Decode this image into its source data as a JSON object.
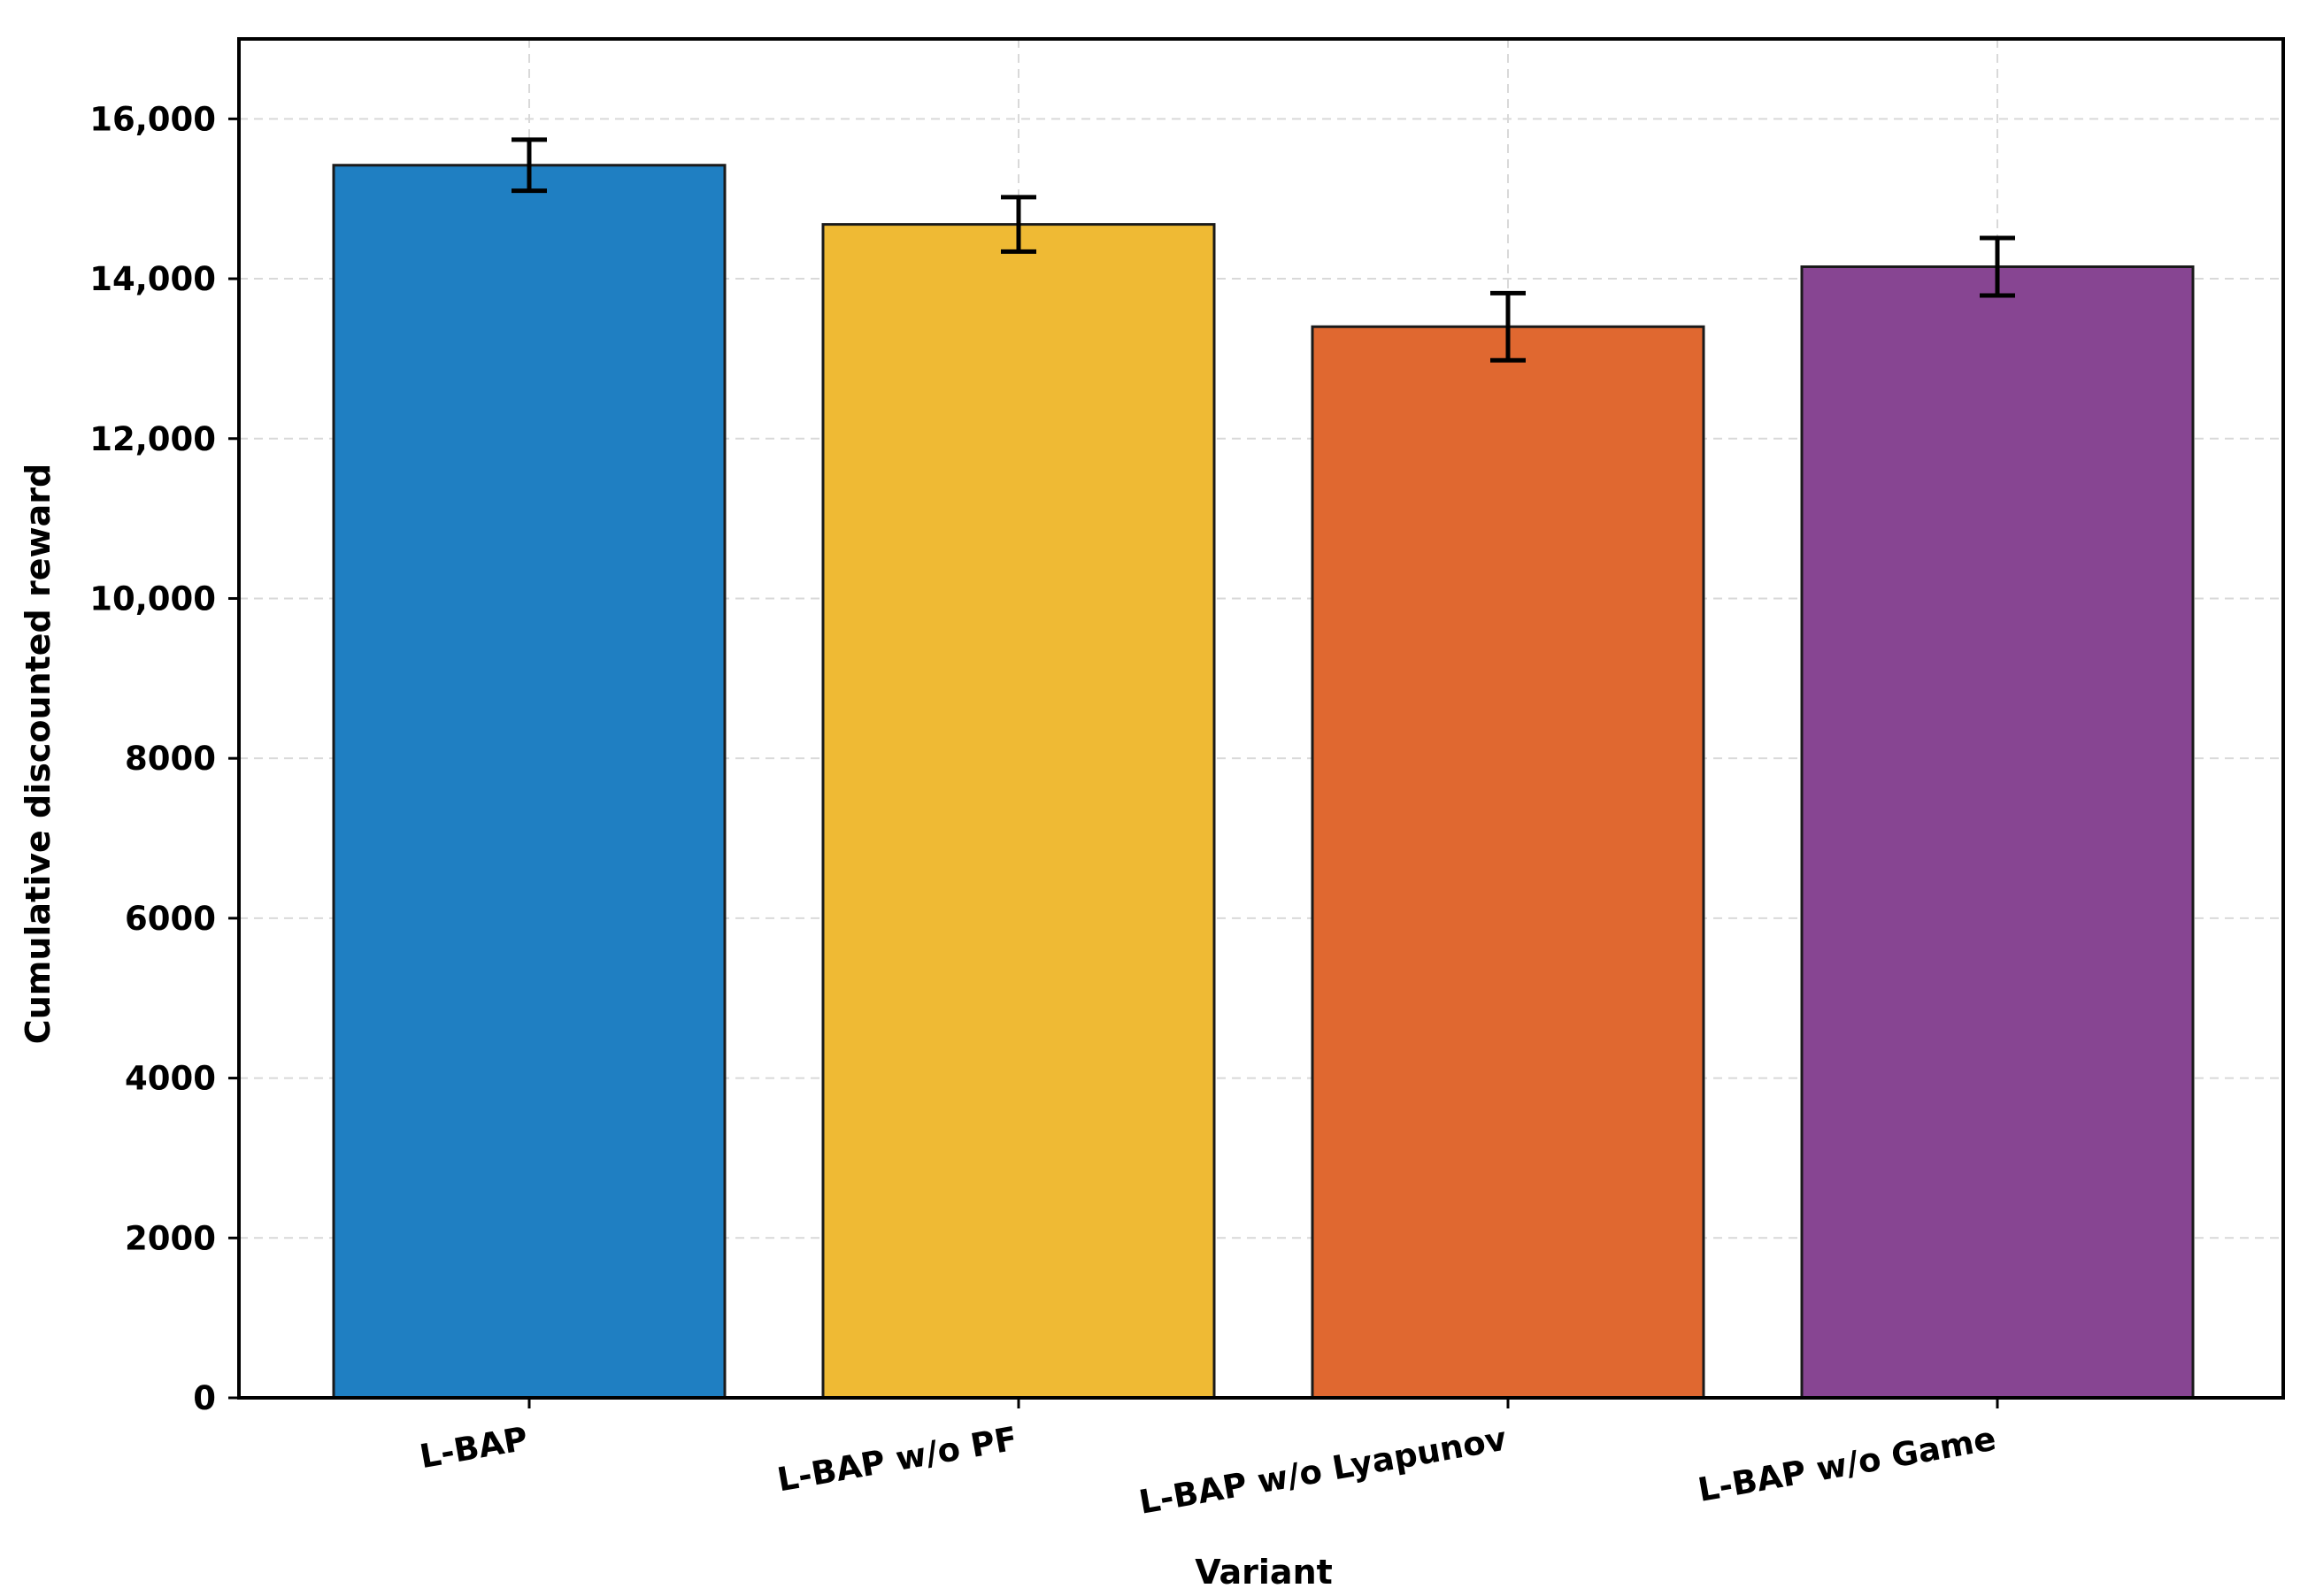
{
  "chart_data": {
    "type": "bar",
    "title": "",
    "xlabel": "Variant",
    "ylabel": "Cumulative discounted reward",
    "categories": [
      "L-BAP",
      "L-BAP w/o PF",
      "L-BAP w/o Lyapunov",
      "L-BAP w/o Game"
    ],
    "values": [
      15420,
      14680,
      13400,
      14150
    ],
    "errors": [
      320,
      340,
      420,
      360
    ],
    "colors": [
      "#1f7fc2",
      "#efba34",
      "#e06830",
      "#874592"
    ],
    "ylim": [
      0,
      17000
    ],
    "yticks": [
      0,
      2000,
      4000,
      6000,
      8000,
      10000,
      12000,
      14000,
      16000
    ],
    "ytick_labels": [
      "0",
      "2000",
      "4000",
      "6000",
      "8000",
      "10,000",
      "12,000",
      "14,000",
      "16,000"
    ],
    "grid": true,
    "legend": "none"
  }
}
